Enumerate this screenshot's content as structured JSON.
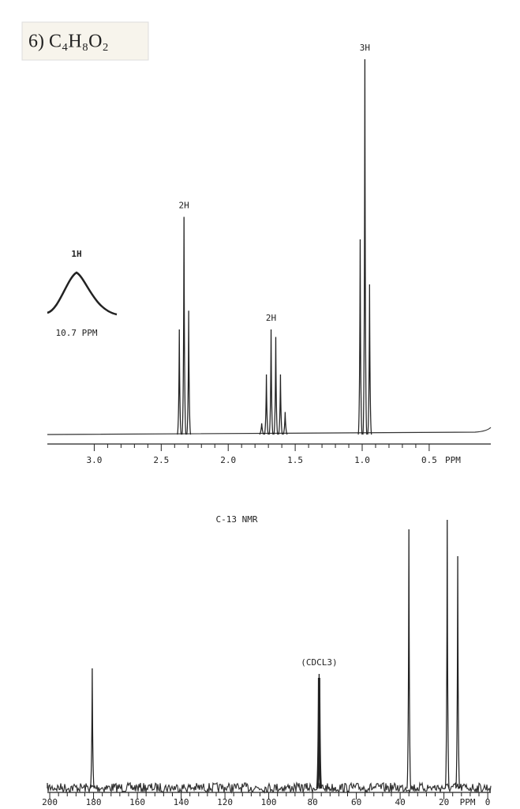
{
  "title": "6) C₄H₈O₂",
  "chart_data": [
    {
      "type": "stick-spectrum",
      "xlim": [
        3.35,
        0.04
      ],
      "ylim": [
        0,
        100
      ],
      "xticks": [
        {
          "value": 3,
          "label": "3.0"
        },
        2.5,
        {
          "value": 2,
          "label": "2.0"
        },
        1.5,
        {
          "value": 1,
          "label": "1.0"
        },
        0.5
      ],
      "x_label": "PPM",
      "x": [
        2.365,
        2.33,
        2.295,
        1.75,
        1.715,
        1.68,
        1.645,
        1.61,
        1.575,
        1.015,
        0.98,
        0.945
      ],
      "values": [
        28,
        58,
        33,
        3,
        16,
        28,
        26,
        16,
        6,
        52,
        100,
        40
      ],
      "annotations": [
        {
          "text": "2H",
          "x": 2.33
        },
        {
          "text": "2H",
          "x": 1.68
        },
        {
          "text": "3H",
          "x": 0.98
        }
      ],
      "inset": {
        "label": "1H",
        "caption": "10.7 PPM"
      }
    },
    {
      "type": "stick-spectrum",
      "title": "C-13 NMR",
      "xlim": [
        201.1,
        -1.4
      ],
      "ylim": [
        0,
        350
      ],
      "xticks": [
        200,
        180,
        160,
        140,
        120,
        100,
        80,
        60,
        40,
        20,
        0
      ],
      "x_label": "PPM",
      "x": [
        180.6,
        77.3,
        77.0,
        76.7,
        36.0,
        18.5,
        13.7
      ],
      "values": [
        152,
        140,
        145,
        140,
        328,
        340,
        294
      ],
      "annotations": [
        {
          "text": "(CDCL3)",
          "x": 77.0
        }
      ]
    }
  ]
}
